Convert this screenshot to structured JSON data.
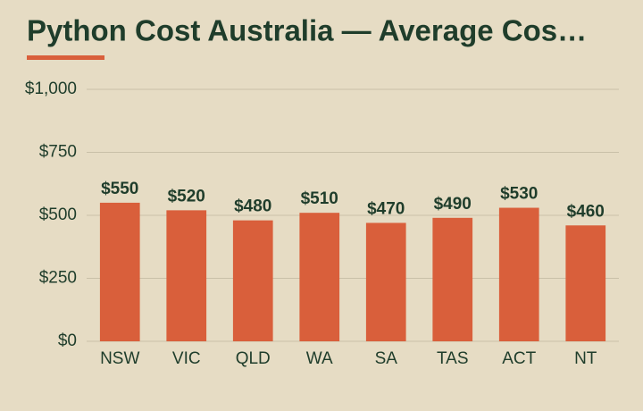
{
  "chart_data": {
    "type": "bar",
    "title": "Python Cost Australia — Average Cos…",
    "categories": [
      "NSW",
      "VIC",
      "QLD",
      "WA",
      "SA",
      "TAS",
      "ACT",
      "NT"
    ],
    "values": [
      550,
      520,
      480,
      510,
      470,
      490,
      530,
      460
    ],
    "value_labels": [
      "$550",
      "$520",
      "$480",
      "$510",
      "$470",
      "$490",
      "$530",
      "$460"
    ],
    "color": "#d95f3b",
    "ylim": [
      0,
      1000
    ],
    "yticks": [
      {
        "value": 0,
        "label": "$0"
      },
      {
        "value": 250,
        "label": "$250"
      },
      {
        "value": 500,
        "label": "$500"
      },
      {
        "value": 750,
        "label": "$750"
      },
      {
        "value": 1000,
        "label": "$1,000"
      }
    ],
    "grid": true
  }
}
